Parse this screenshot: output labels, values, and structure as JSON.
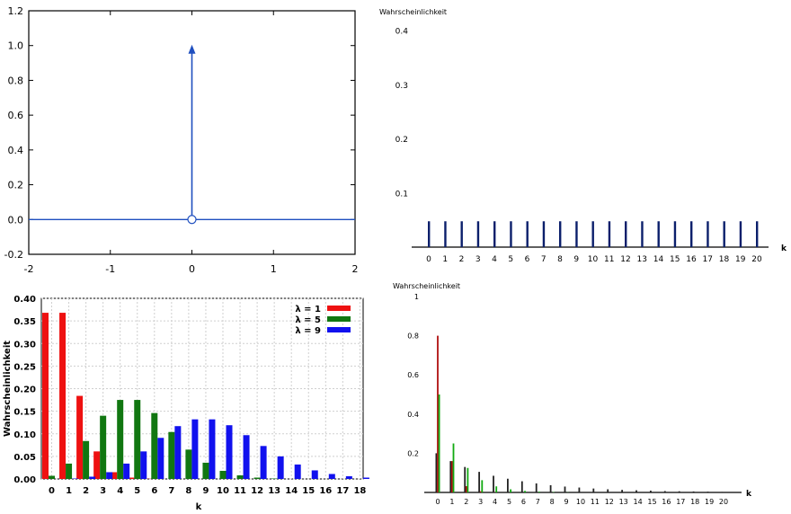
{
  "chart_data": [
    {
      "type": "line",
      "title": "",
      "xlabel": "",
      "ylabel": "",
      "xlim": [
        -2,
        2
      ],
      "ylim": [
        -0.2,
        1.2
      ],
      "x_ticks": [
        "-2",
        "-1",
        "0",
        "1",
        "2"
      ],
      "y_ticks": [
        "-0.2",
        "0.0",
        "0.2",
        "0.4",
        "0.6",
        "0.8",
        "1.0",
        "1.2"
      ],
      "series": [
        {
          "x": [
            -2,
            0,
            2
          ],
          "y": [
            0,
            0,
            0
          ]
        }
      ],
      "impulse": {
        "x": 0,
        "height": 1.0
      },
      "open_point": {
        "x": 0,
        "y": 0
      },
      "color": "#1f4fbf"
    },
    {
      "type": "bar",
      "title": "",
      "ylabel": "Wahrscheinlichkeit",
      "xlabel": "k",
      "y_ticks": [
        "0.1",
        "0.2",
        "0.3",
        "0.4"
      ],
      "ylim": [
        0,
        0.4
      ],
      "categories": [
        "0",
        "1",
        "2",
        "3",
        "4",
        "5",
        "6",
        "7",
        "8",
        "9",
        "10",
        "11",
        "12",
        "13",
        "14",
        "15",
        "16",
        "17",
        "18",
        "19",
        "20"
      ],
      "values": [
        0.0476,
        0.0476,
        0.0476,
        0.0476,
        0.0476,
        0.0476,
        0.0476,
        0.0476,
        0.0476,
        0.0476,
        0.0476,
        0.0476,
        0.0476,
        0.0476,
        0.0476,
        0.0476,
        0.0476,
        0.0476,
        0.0476,
        0.0476,
        0.0476
      ],
      "color": "#0b1f6b"
    },
    {
      "type": "bar",
      "title": "",
      "ylabel": "Wahrscheinlichkeit",
      "xlabel": "k",
      "ylim": [
        0,
        0.4
      ],
      "y_ticks": [
        "0.00",
        "0.05",
        "0.10",
        "0.15",
        "0.20",
        "0.25",
        "0.30",
        "0.35",
        "0.40"
      ],
      "categories": [
        "0",
        "1",
        "2",
        "3",
        "4",
        "5",
        "6",
        "7",
        "8",
        "9",
        "10",
        "11",
        "12",
        "13",
        "14",
        "15",
        "16",
        "17",
        "18"
      ],
      "series": [
        {
          "name": "λ = 1",
          "color": "#ee1111",
          "values": [
            0.368,
            0.368,
            0.184,
            0.061,
            0.015,
            0.003,
            0.0005,
            0,
            0,
            0,
            0,
            0,
            0,
            0,
            0,
            0,
            0,
            0,
            0
          ]
        },
        {
          "name": "λ = 5",
          "color": "#117711",
          "values": [
            0.007,
            0.034,
            0.084,
            0.14,
            0.175,
            0.175,
            0.146,
            0.104,
            0.065,
            0.036,
            0.018,
            0.008,
            0.003,
            0.001,
            0,
            0,
            0,
            0,
            0
          ]
        },
        {
          "name": "λ = 9",
          "color": "#1111ee",
          "values": [
            0.0001,
            0.001,
            0.005,
            0.015,
            0.034,
            0.061,
            0.091,
            0.117,
            0.132,
            0.132,
            0.119,
            0.097,
            0.073,
            0.05,
            0.032,
            0.019,
            0.011,
            0.006,
            0.003
          ]
        }
      ],
      "legend": "top-right",
      "grid": true
    },
    {
      "type": "bar",
      "title": "",
      "ylabel": "Wahrscheinlichkeit",
      "xlabel": "k",
      "ylim": [
        0,
        1
      ],
      "y_ticks": [
        "0.2",
        "0.4",
        "0.6",
        "0.8",
        "1"
      ],
      "categories": [
        "0",
        "1",
        "2",
        "3",
        "4",
        "5",
        "6",
        "7",
        "8",
        "9",
        "10",
        "11",
        "12",
        "13",
        "14",
        "15",
        "16",
        "17",
        "18",
        "19",
        "20"
      ],
      "series": [
        {
          "color": "#222222",
          "values": [
            0.2,
            0.16,
            0.13,
            0.105,
            0.085,
            0.07,
            0.057,
            0.046,
            0.037,
            0.03,
            0.025,
            0.02,
            0.016,
            0.013,
            0.011,
            0.009,
            0.007,
            0.006,
            0.005,
            0.004,
            0.003
          ]
        },
        {
          "color": "#b01010",
          "values": [
            0.8,
            0.16,
            0.032,
            0.006,
            0.001,
            0,
            0,
            0,
            0,
            0,
            0,
            0,
            0,
            0,
            0,
            0,
            0,
            0,
            0,
            0,
            0
          ]
        },
        {
          "color": "#11aa11",
          "values": [
            0.5,
            0.25,
            0.125,
            0.0625,
            0.031,
            0.016,
            0.008,
            0.004,
            0.002,
            0.001,
            0,
            0,
            0,
            0,
            0,
            0,
            0,
            0,
            0,
            0,
            0
          ]
        }
      ]
    }
  ]
}
